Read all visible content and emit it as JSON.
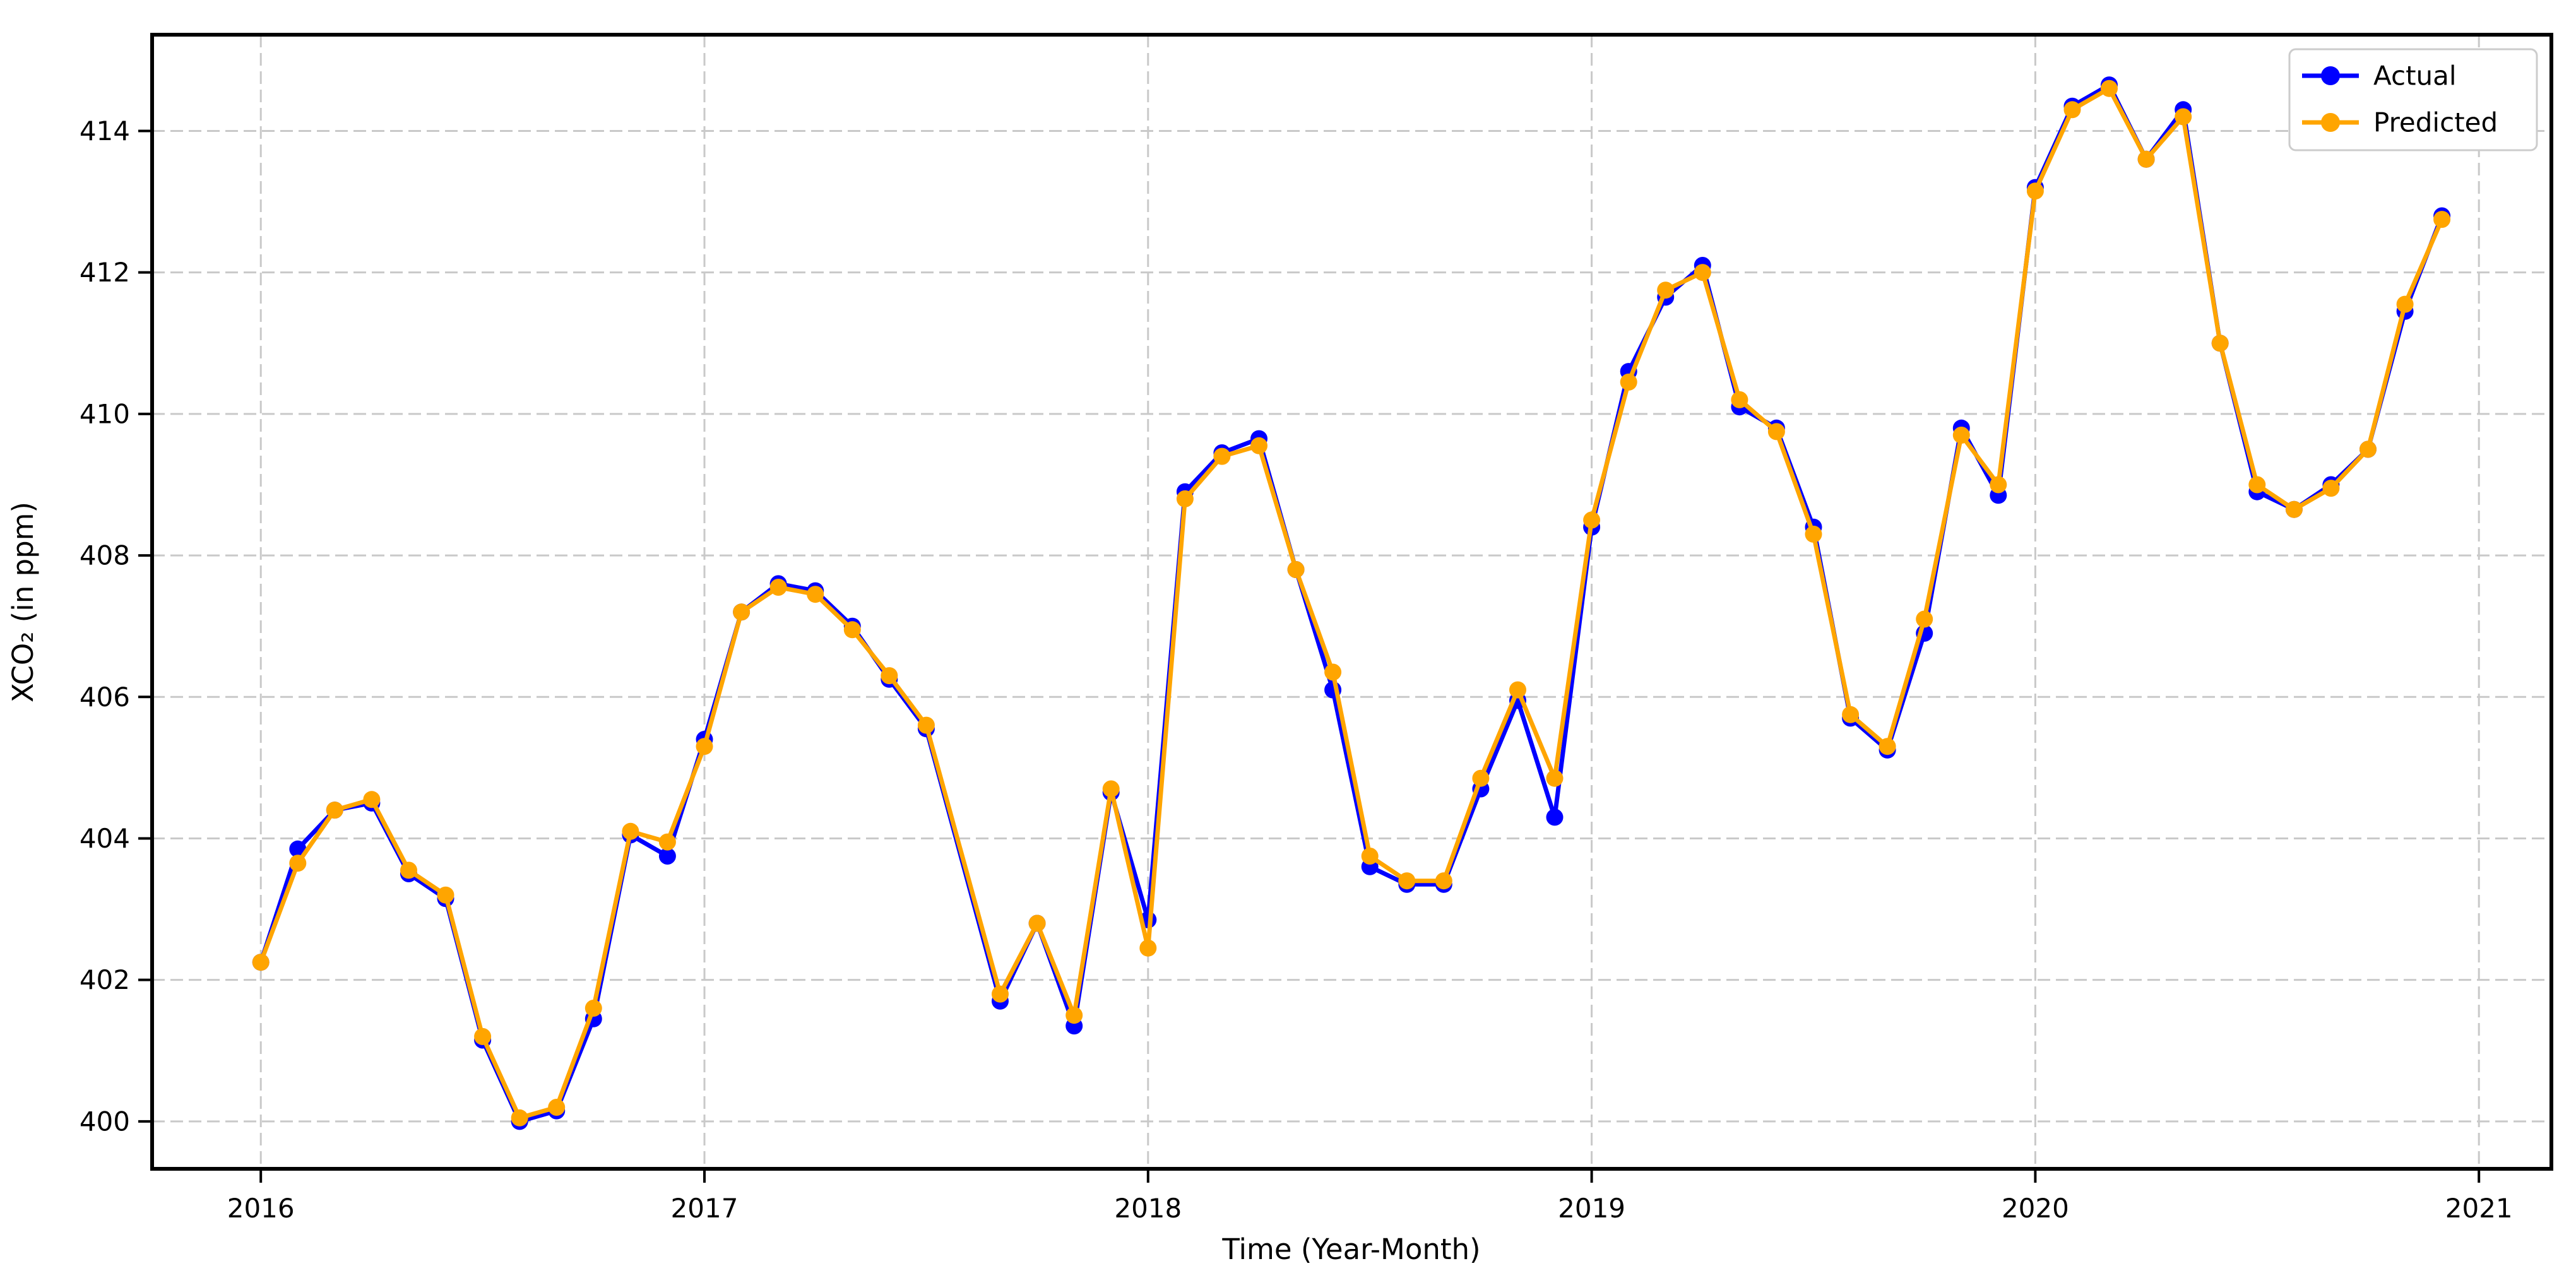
{
  "chart_data": {
    "type": "line",
    "title": "",
    "xlabel": "Time (Year-Month)",
    "ylabel": "XCO₂ (in ppm)",
    "x": [
      "2016-01",
      "2016-02",
      "2016-03",
      "2016-04",
      "2016-05",
      "2016-06",
      "2016-07",
      "2016-08",
      "2016-09",
      "2016-10",
      "2016-11",
      "2016-12",
      "2017-01",
      "2017-02",
      "2017-03",
      "2017-04",
      "2017-05",
      "2017-06",
      "2017-07",
      "2017-09",
      "2017-10",
      "2017-11",
      "2017-12",
      "2018-01",
      "2018-02",
      "2018-03",
      "2018-04",
      "2018-05",
      "2018-06",
      "2018-07",
      "2018-08",
      "2018-09",
      "2018-10",
      "2018-11",
      "2018-12",
      "2019-01",
      "2019-02",
      "2019-03",
      "2019-04",
      "2019-05",
      "2019-06",
      "2019-07",
      "2019-08",
      "2019-09",
      "2019-10",
      "2019-11",
      "2019-12",
      "2020-01",
      "2020-02",
      "2020-03",
      "2020-04",
      "2020-05",
      "2020-06",
      "2020-07",
      "2020-08",
      "2020-09",
      "2020-10",
      "2020-11",
      "2020-12"
    ],
    "series": [
      {
        "name": "Actual",
        "color": "#0000ff",
        "values": [
          402.25,
          403.85,
          404.4,
          404.5,
          403.5,
          403.15,
          401.15,
          400.0,
          400.15,
          401.45,
          404.05,
          403.75,
          405.4,
          407.2,
          407.6,
          407.5,
          407.0,
          406.25,
          405.55,
          401.7,
          402.8,
          401.35,
          404.65,
          402.85,
          408.9,
          409.45,
          409.65,
          407.8,
          406.1,
          403.6,
          403.35,
          403.35,
          404.7,
          405.95,
          404.3,
          408.4,
          410.6,
          411.65,
          412.1,
          410.1,
          409.8,
          408.4,
          405.7,
          405.25,
          406.9,
          409.8,
          408.85,
          413.2,
          414.35,
          414.65,
          413.6,
          414.3,
          411.0,
          408.9,
          408.65,
          409.0,
          409.5,
          411.45,
          412.8
        ]
      },
      {
        "name": "Predicted",
        "color": "#ffa500",
        "values": [
          402.25,
          403.65,
          404.4,
          404.55,
          403.55,
          403.2,
          401.2,
          400.05,
          400.2,
          401.6,
          404.1,
          403.95,
          405.3,
          407.2,
          407.55,
          407.45,
          406.95,
          406.3,
          405.6,
          401.8,
          402.8,
          401.5,
          404.7,
          402.45,
          408.8,
          409.4,
          409.55,
          407.8,
          406.35,
          403.75,
          403.4,
          403.4,
          404.85,
          406.1,
          404.85,
          408.5,
          410.45,
          411.75,
          412.0,
          410.2,
          409.75,
          408.3,
          405.75,
          405.3,
          407.1,
          409.7,
          409.0,
          413.15,
          414.3,
          414.6,
          413.6,
          414.2,
          411.0,
          409.0,
          408.65,
          408.95,
          409.5,
          411.55,
          412.75
        ]
      }
    ],
    "x_ticks": [
      "2016",
      "2017",
      "2018",
      "2019",
      "2020",
      "2021"
    ],
    "y_ticks": [
      "400",
      "402",
      "404",
      "406",
      "408",
      "410",
      "412",
      "414"
    ],
    "ylim": [
      399.33,
      415.36
    ],
    "xlim_months": [
      -2.94,
      61.96
    ],
    "grid": true,
    "legend_position": "upper right"
  },
  "colors": {
    "background": "#ffffff",
    "grid": "#c9c9c9",
    "axis": "#000000",
    "legend_border": "#cccccc",
    "actual": "#0000ff",
    "predicted": "#ffa500"
  }
}
